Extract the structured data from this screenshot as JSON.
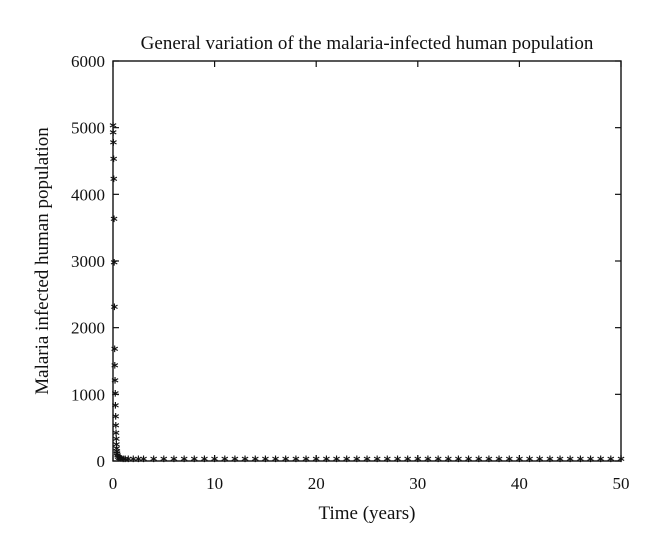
{
  "chart_data": {
    "type": "scatter",
    "title": "General variation of the malaria-infected human population",
    "xlabel": "Time (years)",
    "ylabel": "Malaria infected human population",
    "xlim": [
      0,
      50
    ],
    "ylim": [
      0,
      6000
    ],
    "xticks": [
      "0",
      "10",
      "20",
      "30",
      "40",
      "50"
    ],
    "yticks": [
      "0",
      "1000",
      "2000",
      "3000",
      "4000",
      "5000",
      "6000"
    ],
    "marker": "*",
    "grid": false,
    "series": [
      {
        "x": [
          0,
          0.02,
          0.04,
          0.06,
          0.08,
          0.1,
          0.12,
          0.14,
          0.16,
          0.18,
          0.2,
          0.22,
          0.24,
          0.26,
          0.28,
          0.3,
          0.32,
          0.34,
          0.36,
          0.38,
          0.4,
          0.45,
          0.5,
          0.6,
          0.7,
          0.8,
          1,
          1.2,
          1.5,
          2,
          2.5,
          3,
          4,
          5,
          6,
          7,
          8,
          9,
          10,
          11,
          12,
          13,
          14,
          15,
          16,
          17,
          18,
          19,
          20,
          21,
          22,
          23,
          24,
          25,
          26,
          27,
          28,
          29,
          30,
          31,
          32,
          33,
          34,
          35,
          36,
          37,
          38,
          39,
          40,
          41,
          42,
          43,
          44,
          45,
          46,
          47,
          48,
          49,
          50
        ],
        "y": [
          5000,
          4900,
          4750,
          4500,
          4200,
          3600,
          2950,
          2280,
          1650,
          1400,
          1180,
          980,
          800,
          640,
          500,
          390,
          300,
          220,
          160,
          110,
          80,
          50,
          30,
          15,
          8,
          5,
          3,
          2,
          1,
          1,
          0,
          0,
          0,
          0,
          0,
          0,
          0,
          0,
          0,
          0,
          0,
          0,
          0,
          0,
          0,
          0,
          0,
          0,
          0,
          0,
          0,
          0,
          0,
          0,
          0,
          0,
          0,
          0,
          0,
          0,
          0,
          0,
          0,
          0,
          0,
          0,
          0,
          0,
          0,
          0,
          0,
          0,
          0,
          0,
          0,
          0,
          0,
          0,
          0
        ]
      }
    ]
  }
}
